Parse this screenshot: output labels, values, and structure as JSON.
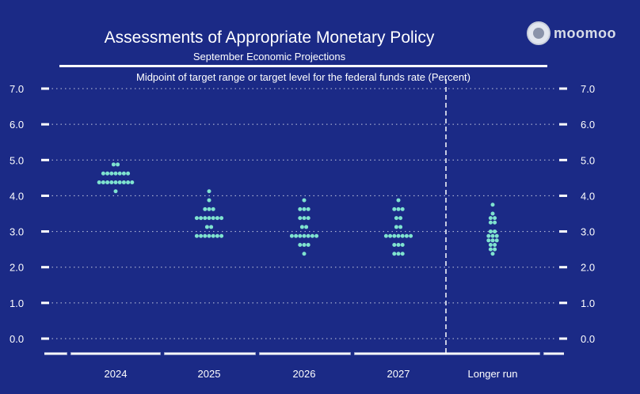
{
  "header": {
    "title": "Assessments of Appropriate Monetary Policy",
    "subtitle": "September Economic Projections",
    "caption": "Midpoint of target range or target level for the federal funds rate (Percent)"
  },
  "branding": {
    "name": "moomoo",
    "logo_icon": "federal-reserve-seal-icon"
  },
  "colors": {
    "background": "#1b2a86",
    "dot": "#7fe3cf",
    "axis": "#ffffff"
  },
  "chart_data": {
    "type": "scatter",
    "title": "Assessments of Appropriate Monetary Policy",
    "subtitle": "September Economic Projections",
    "ylabel": "Midpoint of target range or target level for the federal funds rate (Percent)",
    "ylim": [
      0,
      7
    ],
    "yticks": [
      "0.0",
      "1.0",
      "2.0",
      "3.0",
      "4.0",
      "5.0",
      "6.0",
      "7.0"
    ],
    "categories": [
      "2024",
      "2025",
      "2026",
      "2027",
      "Longer run"
    ],
    "grid": true,
    "divider_before": "Longer run",
    "dots": [
      {
        "category": "2024",
        "levels": [
          {
            "rate": 4.875,
            "count": 2
          },
          {
            "rate": 4.625,
            "count": 7
          },
          {
            "rate": 4.375,
            "count": 9
          },
          {
            "rate": 4.125,
            "count": 1
          }
        ]
      },
      {
        "category": "2025",
        "levels": [
          {
            "rate": 4.125,
            "count": 1
          },
          {
            "rate": 3.875,
            "count": 1
          },
          {
            "rate": 3.625,
            "count": 3
          },
          {
            "rate": 3.375,
            "count": 7
          },
          {
            "rate": 3.125,
            "count": 2
          },
          {
            "rate": 3.125,
            "count": 0
          },
          {
            "rate": 2.875,
            "count": 7
          },
          {
            "rate": 2.875,
            "count": 0
          }
        ]
      },
      {
        "category": "2026",
        "levels": [
          {
            "rate": 3.875,
            "count": 1
          },
          {
            "rate": 3.625,
            "count": 3
          },
          {
            "rate": 3.375,
            "count": 3
          },
          {
            "rate": 3.125,
            "count": 2
          },
          {
            "rate": 2.875,
            "count": 7
          },
          {
            "rate": 2.625,
            "count": 3
          },
          {
            "rate": 2.375,
            "count": 1
          }
        ]
      },
      {
        "category": "2027",
        "levels": [
          {
            "rate": 3.875,
            "count": 1
          },
          {
            "rate": 3.625,
            "count": 3
          },
          {
            "rate": 3.375,
            "count": 2
          },
          {
            "rate": 3.125,
            "count": 2
          },
          {
            "rate": 2.875,
            "count": 7
          },
          {
            "rate": 2.625,
            "count": 3
          },
          {
            "rate": 2.375,
            "count": 3
          }
        ]
      },
      {
        "category": "Longer run",
        "levels": [
          {
            "rate": 3.75,
            "count": 1
          },
          {
            "rate": 3.5,
            "count": 1
          },
          {
            "rate": 3.375,
            "count": 2
          },
          {
            "rate": 3.25,
            "count": 2
          },
          {
            "rate": 3.0,
            "count": 2
          },
          {
            "rate": 2.875,
            "count": 3
          },
          {
            "rate": 2.75,
            "count": 3
          },
          {
            "rate": 2.625,
            "count": 2
          },
          {
            "rate": 2.5,
            "count": 2
          },
          {
            "rate": 2.375,
            "count": 1
          }
        ]
      }
    ]
  }
}
